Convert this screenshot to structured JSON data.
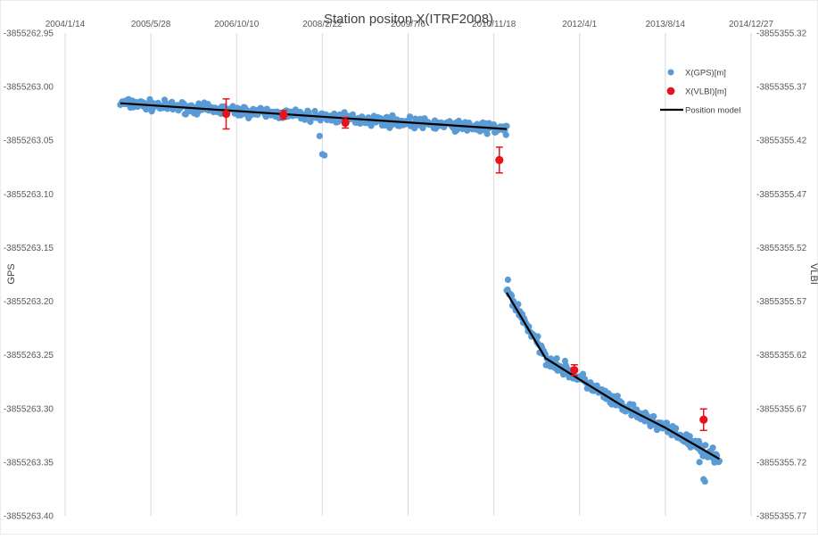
{
  "chart_data": {
    "type": "scatter",
    "title": "Station positon X(ITRF2008)",
    "ylabel_left": "GPS",
    "ylabel_right": "VLBI",
    "x_axis": {
      "ticks": [
        "2004/1/14",
        "2005/5/28",
        "2006/10/10",
        "2008/2/22",
        "2009/7/6",
        "2010/11/18",
        "2012/4/1",
        "2013/8/14",
        "2014/12/27"
      ],
      "range": [
        "2004-01-14",
        "2014-12-27"
      ],
      "grid": true
    },
    "y_left": {
      "ticks": [
        "-3855262.95",
        "-3855263.00",
        "-3855263.05",
        "-3855263.10",
        "-3855263.15",
        "-3855263.20",
        "-3855263.25",
        "-3855263.30",
        "-3855263.35",
        "-3855263.40"
      ],
      "range": [
        -3855263.4,
        -3855262.95
      ]
    },
    "y_right": {
      "ticks": [
        "-3855355.32",
        "-3855355.37",
        "-3855355.42",
        "-3855355.47",
        "-3855355.52",
        "-3855355.57",
        "-3855355.62",
        "-3855355.67",
        "-3855355.72",
        "-3855355.77"
      ],
      "range": [
        -3855355.77,
        -3855355.32
      ]
    },
    "legend": {
      "position": "top-right",
      "items": [
        {
          "label": "X(GPS)[m]",
          "marker": "circle",
          "color": "#5b9bd5"
        },
        {
          "label": "X(VLBI)[m]",
          "marker": "circle",
          "color": "#e8121c"
        },
        {
          "label": "Position model",
          "marker": "line",
          "color": "#000000"
        }
      ]
    },
    "series": [
      {
        "name": "X(GPS)[m]",
        "color": "#5b9bd5",
        "axis": "left",
        "segments": [
          {
            "from": "2004-12-01",
            "to": "2011-02-01",
            "trend": [
              [
                "2004-12-01",
                -3855263.0155
              ],
              [
                "2011-02-01",
                -3855263.0395
              ]
            ],
            "noise": 0.004
          },
          {
            "from": "2011-02-01",
            "to": "2014-06-25",
            "trend": [
              [
                "2011-02-01",
                -3855263.19
              ],
              [
                "2011-09-15",
                -3855263.252
              ],
              [
                "2012-04-01",
                -3855263.272
              ],
              [
                "2012-12-01",
                -3855263.298
              ],
              [
                "2013-08-14",
                -3855263.318
              ],
              [
                "2014-06-25",
                -3855263.347
              ]
            ],
            "noise": 0.005
          }
        ],
        "outliers": [
          {
            "x": "2008-02-06",
            "y": -3855263.046
          },
          {
            "x": "2008-02-22",
            "y": -3855263.063
          },
          {
            "x": "2008-03-05",
            "y": -3855263.064
          },
          {
            "x": "2011-02-08",
            "y": -3855263.18
          },
          {
            "x": "2012-05-20",
            "y": -3855263.278
          },
          {
            "x": "2013-02-15",
            "y": -3855263.305
          },
          {
            "x": "2014-03-01",
            "y": -3855263.35
          },
          {
            "x": "2014-03-25",
            "y": -3855263.366
          },
          {
            "x": "2014-04-02",
            "y": -3855263.368
          },
          {
            "x": "2014-05-01",
            "y": -3855263.34
          },
          {
            "x": "2010-10-10",
            "y": -3855263.044
          },
          {
            "x": "2011-01-28",
            "y": -3855263.045
          }
        ]
      },
      {
        "name": "X(VLBI)[m]",
        "color": "#e8121c",
        "axis": "right",
        "points": [
          {
            "x": "2006-08-10",
            "y": -3855355.3954,
            "err": 0.014
          },
          {
            "x": "2007-07-10",
            "y": -3855355.3963,
            "err": 0.004
          },
          {
            "x": "2008-07-05",
            "y": -3855355.4036,
            "err": 0.005
          },
          {
            "x": "2010-12-20",
            "y": -3855355.4384,
            "err": 0.012
          },
          {
            "x": "2012-03-01",
            "y": -3855355.6342,
            "err": 0.005
          },
          {
            "x": "2014-03-25",
            "y": -3855355.6804,
            "err": 0.01
          }
        ]
      },
      {
        "name": "Position model",
        "color": "#000000",
        "axis": "left",
        "lines": [
          [
            [
              "2004-12-01",
              -3855263.0155
            ],
            [
              "2011-02-01",
              -3855263.0395
            ]
          ],
          [
            [
              "2011-02-01",
              -3855263.192
            ],
            [
              "2011-09-15",
              -3855263.253
            ],
            [
              "2012-04-01",
              -3855263.273
            ],
            [
              "2012-12-01",
              -3855263.297
            ],
            [
              "2013-08-14",
              -3855263.318
            ],
            [
              "2014-06-25",
              -3855263.347
            ]
          ]
        ]
      }
    ]
  }
}
